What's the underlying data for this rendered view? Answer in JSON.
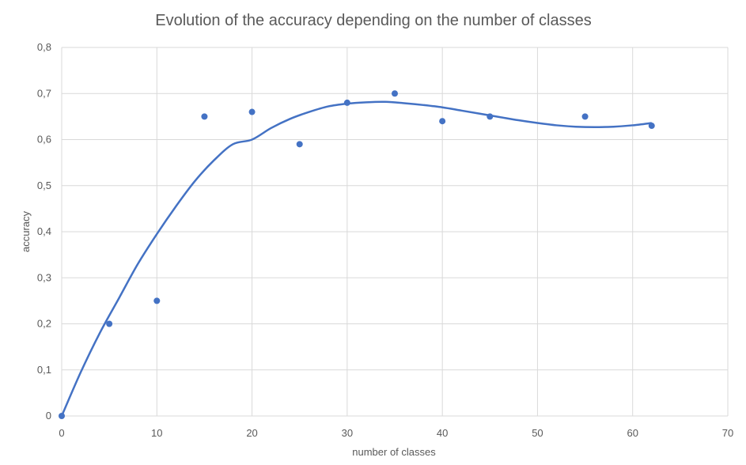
{
  "chart_data": {
    "type": "scatter",
    "title": "Evolution of the accuracy depending on the number of classes",
    "xlabel": "number of classes",
    "ylabel": "accuracy",
    "xlim": [
      0,
      70
    ],
    "ylim": [
      0,
      0.8
    ],
    "x_ticks": [
      0,
      10,
      20,
      30,
      40,
      50,
      60,
      70
    ],
    "x_tick_labels": [
      "0",
      "10",
      "20",
      "30",
      "40",
      "50",
      "60",
      "70"
    ],
    "y_ticks": [
      0,
      0.1,
      0.2,
      0.3,
      0.4,
      0.5,
      0.6,
      0.7,
      0.8
    ],
    "y_tick_labels": [
      "0",
      "0,1",
      "0,2",
      "0,3",
      "0,4",
      "0,5",
      "0,6",
      "0,7",
      "0,8"
    ],
    "grid": true,
    "legend": "none",
    "series": [
      {
        "x": [
          0,
          5,
          10,
          15,
          20,
          25,
          30,
          35,
          40,
          45,
          55,
          62
        ],
        "y": [
          0,
          0.2,
          0.25,
          0.65,
          0.66,
          0.59,
          0.68,
          0.7,
          0.64,
          0.65,
          0.65,
          0.63
        ],
        "color": "#4472c4"
      }
    ],
    "trendline": {
      "type": "polynomial",
      "color": "#4472c4",
      "x": [
        0,
        2,
        4,
        6,
        8,
        10,
        12,
        14,
        16,
        18,
        20,
        22,
        24,
        26,
        28,
        30,
        32,
        34,
        36,
        38,
        40,
        42,
        44,
        46,
        48,
        50,
        52,
        54,
        56,
        58,
        60,
        62
      ],
      "y": [
        0,
        0.095,
        0.18,
        0.255,
        0.33,
        0.395,
        0.455,
        0.51,
        0.555,
        0.59,
        0.6,
        0.625,
        0.645,
        0.66,
        0.672,
        0.678,
        0.681,
        0.682,
        0.679,
        0.675,
        0.67,
        0.663,
        0.656,
        0.649,
        0.642,
        0.636,
        0.631,
        0.628,
        0.627,
        0.628,
        0.631,
        0.636
      ]
    }
  }
}
